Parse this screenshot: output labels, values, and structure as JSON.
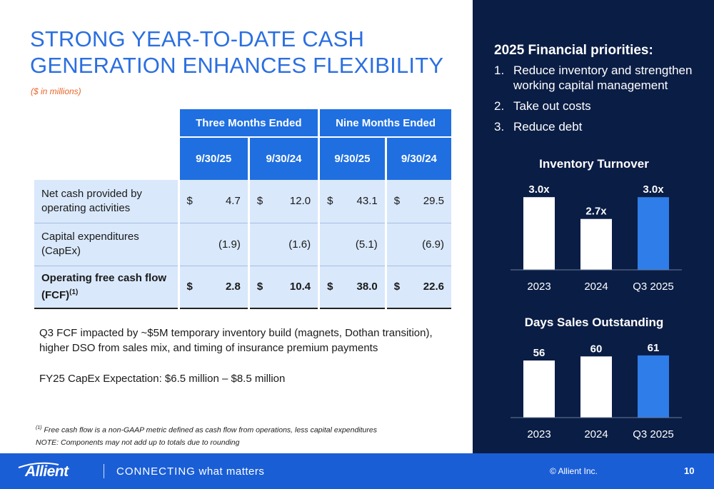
{
  "title": {
    "line1": "STRONG YEAR-TO-DATE CASH",
    "line2": "GENERATION ENHANCES FLEXIBILITY",
    "subtitle": "($ in millions)"
  },
  "table": {
    "groups": [
      "Three Months Ended",
      "Nine Months Ended"
    ],
    "dates": [
      "9/30/25",
      "9/30/24",
      "9/30/25",
      "9/30/24"
    ],
    "rows": [
      {
        "label": "Net cash provided by operating activities",
        "sup": "",
        "cells": [
          {
            "d": "$",
            "v": "4.7"
          },
          {
            "d": "$",
            "v": "12.0"
          },
          {
            "d": "$",
            "v": "43.1"
          },
          {
            "d": "$",
            "v": "29.5"
          }
        ]
      },
      {
        "label": "Capital expenditures (CapEx)",
        "sup": "",
        "cells": [
          {
            "d": "",
            "v": "(1.9)"
          },
          {
            "d": "",
            "v": "(1.6)"
          },
          {
            "d": "",
            "v": "(5.1)"
          },
          {
            "d": "",
            "v": "(6.9)"
          }
        ]
      },
      {
        "label": "Operating free cash flow (FCF)",
        "sup": "(1)",
        "cells": [
          {
            "d": "$",
            "v": "2.8"
          },
          {
            "d": "$",
            "v": "10.4"
          },
          {
            "d": "$",
            "v": "38.0"
          },
          {
            "d": "$",
            "v": "22.6"
          }
        ]
      }
    ]
  },
  "notes": {
    "fcf_impact": "Q3 FCF impacted by ~$5M temporary inventory build (magnets, Dothan transition), higher DSO from sales mix, and timing of insurance premium payments",
    "capex_expectation": "FY25 CapEx Expectation: $6.5 million – $8.5 million",
    "footnote_sup": "(1)",
    "footnote": " Free cash flow is a non-GAAP metric defined as cash flow from operations, less capital expenditures",
    "note": "NOTE: Components may not add up to totals due to rounding"
  },
  "priorities": {
    "title": "2025 Financial priorities:",
    "items": [
      {
        "n": "1.",
        "text": "Reduce inventory and strengthen working capital management"
      },
      {
        "n": "2.",
        "text": "Take out costs"
      },
      {
        "n": "3.",
        "text": "Reduce debt"
      }
    ]
  },
  "colors": {
    "accent": "#1f6fe0",
    "navy": "#0a1d45",
    "highlight_bar": "#2f7de8",
    "bar": "#ffffff",
    "subtitle": "#e8652a"
  },
  "chart_data": [
    {
      "type": "bar",
      "title": "Inventory Turnover",
      "categories": [
        "2023",
        "2024",
        "Q3 2025"
      ],
      "values": [
        3.0,
        2.7,
        3.0
      ],
      "labels": [
        "3.0x",
        "2.7x",
        "3.0x"
      ],
      "highlight_index": 2,
      "ylim": [
        2.0,
        3.1
      ]
    },
    {
      "type": "bar",
      "title": "Days Sales Outstanding",
      "categories": [
        "2023",
        "2024",
        "Q3 2025"
      ],
      "values": [
        56,
        60,
        61
      ],
      "labels": [
        "56",
        "60",
        "61"
      ],
      "highlight_index": 2,
      "ylim": [
        0,
        63
      ]
    }
  ],
  "footer": {
    "logo": "Allient",
    "tagline_caps": "CONNECTING",
    "tagline_rest": " what matters",
    "copyright": "© Allient Inc.",
    "page": "10"
  }
}
